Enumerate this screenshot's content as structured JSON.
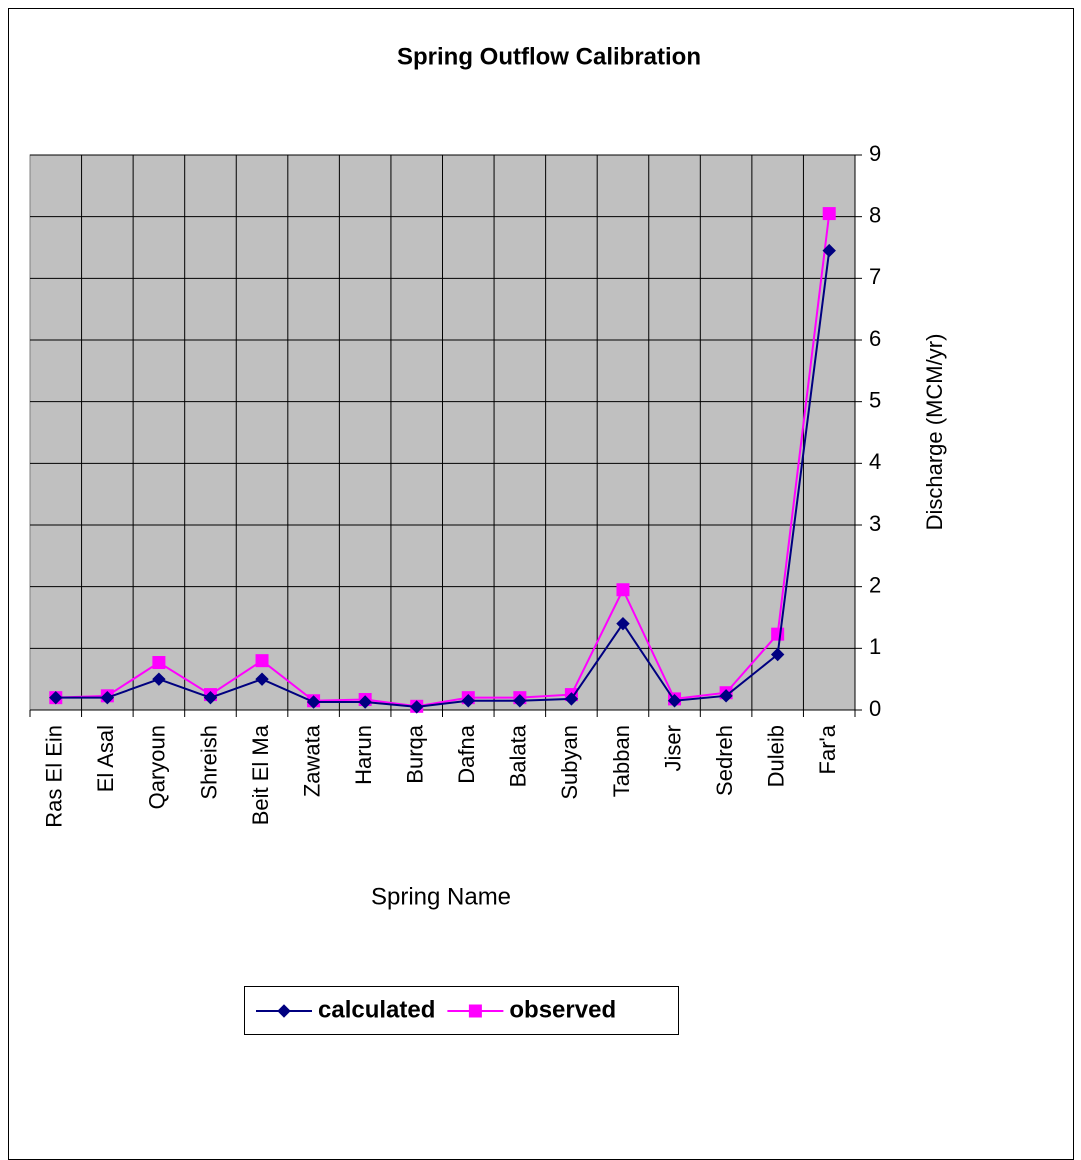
{
  "chart_data": {
    "type": "line",
    "title": "Spring Outflow Calibration",
    "x_label": "Spring Name",
    "y_label": "Discharge (MCM/yr)",
    "y_axis_side": "right",
    "categories": [
      "Ras El Ein",
      "El Asal",
      "Qaryoun",
      "Shreish",
      "Beit El Ma",
      "Zawata",
      "Harun",
      "Burqa",
      "Dafna",
      "Balata",
      "Subyan",
      "Tabban",
      "Jiser",
      "Sedreh",
      "Duleib",
      "Far'a"
    ],
    "series": [
      {
        "name": "calculated",
        "color": "#000080",
        "marker": "diamond",
        "values": [
          0.2,
          0.2,
          0.5,
          0.2,
          0.5,
          0.13,
          0.13,
          0.05,
          0.15,
          0.15,
          0.18,
          1.4,
          0.15,
          0.23,
          0.9,
          7.45
        ]
      },
      {
        "name": "observed",
        "color": "#ff00ff",
        "marker": "square",
        "values": [
          0.2,
          0.23,
          0.77,
          0.25,
          0.8,
          0.15,
          0.17,
          0.06,
          0.2,
          0.2,
          0.25,
          1.95,
          0.18,
          0.28,
          1.23,
          8.05
        ]
      }
    ],
    "ylim": [
      0,
      9
    ],
    "yticks": [
      0,
      1,
      2,
      3,
      4,
      5,
      6,
      7,
      8,
      9
    ],
    "grid": true,
    "plot_background": "#c0c0c0",
    "legend": "bottom"
  }
}
